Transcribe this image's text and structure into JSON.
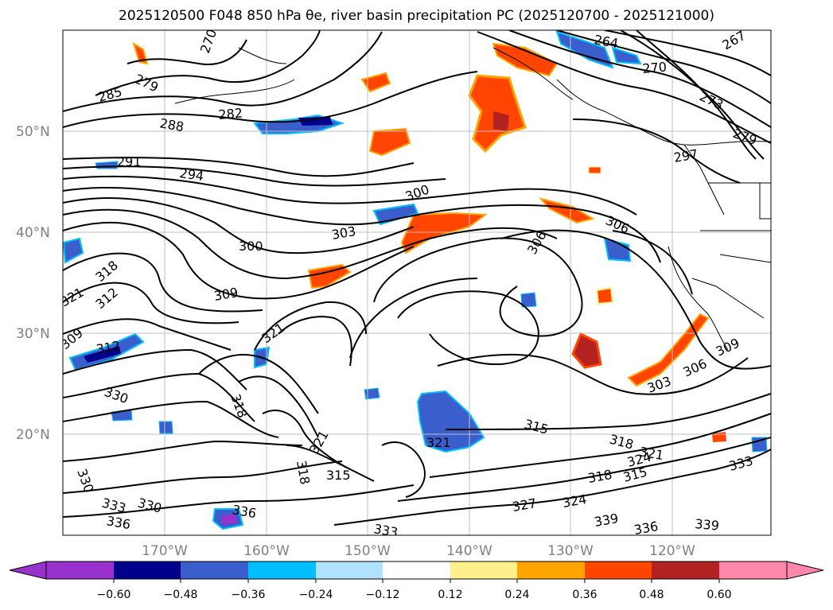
{
  "title": "2025120500 F048 850 hPa θe, river basin precipitation PC (2025120700 - 2025121000)",
  "map": {
    "lon_labels": [
      "170°W",
      "160°W",
      "150°W",
      "140°W",
      "130°W",
      "120°W"
    ],
    "lat_labels": [
      "50°N",
      "40°N",
      "30°N",
      "20°N"
    ]
  },
  "contour_labels": [
    "270",
    "279",
    "285",
    "288",
    "282",
    "291",
    "294",
    "300",
    "303",
    "300",
    "306",
    "306",
    "309",
    "312",
    "318",
    "321",
    "309",
    "321",
    "312",
    "330",
    "318",
    "321",
    "315",
    "318",
    "330",
    "333",
    "330",
    "336",
    "336",
    "333",
    "327",
    "324",
    "321",
    "321",
    "318",
    "318",
    "315",
    "324",
    "315",
    "303",
    "306",
    "309",
    "297",
    "279",
    "273",
    "270",
    "267",
    "264",
    "339",
    "339",
    "336",
    "333"
  ],
  "colorbar": {
    "colors": [
      "#9932cc",
      "#00008b",
      "#3a5fcd",
      "#00bfff",
      "#b0e2ff",
      "#ffffff",
      "#fff08c",
      "#ffa500",
      "#ff4500",
      "#b22222",
      "#ff88aa"
    ],
    "extend_low_color": "#9932cc",
    "extend_high_color": "#ff88aa",
    "ticks": [
      "−0.60",
      "−0.48",
      "−0.36",
      "−0.24",
      "−0.12",
      "0.12",
      "0.24",
      "0.36",
      "0.48",
      "0.60"
    ]
  }
}
